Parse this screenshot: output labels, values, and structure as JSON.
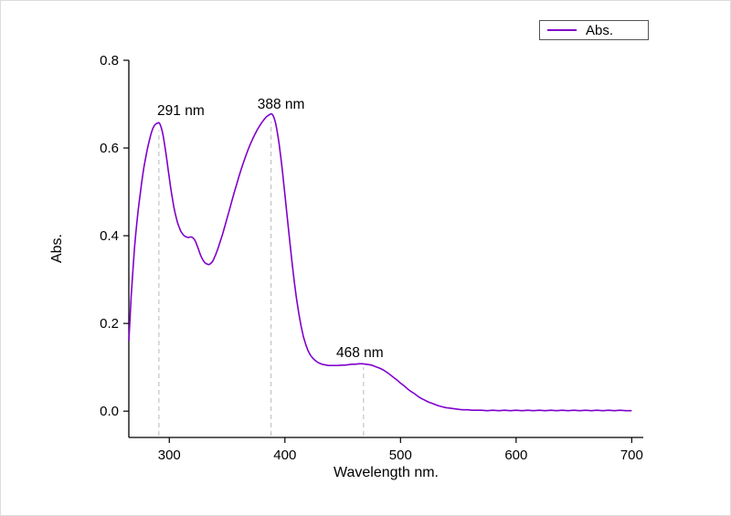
{
  "figure": {
    "background": "#ffffff",
    "border_color": "#dcdcdc"
  },
  "chart_data": {
    "type": "line",
    "title": "",
    "xlabel": "Wavelength nm.",
    "ylabel": "Abs.",
    "legend": {
      "label": "Abs.",
      "position": "top-right"
    },
    "colors": {
      "line": "#8000cc",
      "annotation_line": "#c4c4c4",
      "axis": "#000000",
      "text": "#000000",
      "legend_border": "#545454"
    },
    "xlim": [
      265,
      710
    ],
    "ylim": [
      -0.06,
      0.8
    ],
    "xticks": [
      300,
      400,
      500,
      600,
      700
    ],
    "xtick_labels": [
      "300",
      "400",
      "500",
      "600",
      "700"
    ],
    "yticks": [
      0,
      0.2,
      0.4,
      0.6,
      0.8
    ],
    "ytick_labels": [
      "0.0",
      "0.2",
      "0.4",
      "0.6",
      "0.8"
    ],
    "grid": false,
    "annotations": [
      {
        "text": "291 nm",
        "x": 291,
        "line_top": 0.64,
        "label_y": 0.675,
        "dx": 24
      },
      {
        "text": "388 nm",
        "x": 388,
        "line_top": 0.66,
        "label_y": 0.69,
        "dx": 11
      },
      {
        "text": "468 nm",
        "x": 468,
        "line_top": 0.1,
        "label_y": 0.123,
        "dx": -4
      }
    ],
    "series": [
      {
        "name": "Abs.",
        "points": [
          [
            265,
            0.16
          ],
          [
            266,
            0.21
          ],
          [
            267,
            0.26
          ],
          [
            268,
            0.3
          ],
          [
            269,
            0.34
          ],
          [
            270,
            0.375
          ],
          [
            271,
            0.405
          ],
          [
            272,
            0.432
          ],
          [
            273,
            0.456
          ],
          [
            274,
            0.478
          ],
          [
            275,
            0.499
          ],
          [
            276,
            0.519
          ],
          [
            277,
            0.538
          ],
          [
            278,
            0.555
          ],
          [
            279,
            0.57
          ],
          [
            280,
            0.584
          ],
          [
            281,
            0.597
          ],
          [
            282,
            0.609
          ],
          [
            283,
            0.62
          ],
          [
            284,
            0.63
          ],
          [
            285,
            0.639
          ],
          [
            286,
            0.646
          ],
          [
            287,
            0.651
          ],
          [
            288,
            0.654
          ],
          [
            289,
            0.656
          ],
          [
            290,
            0.657
          ],
          [
            291,
            0.658
          ],
          [
            292,
            0.654
          ],
          [
            293,
            0.647
          ],
          [
            294,
            0.637
          ],
          [
            295,
            0.623
          ],
          [
            296,
            0.607
          ],
          [
            297,
            0.589
          ],
          [
            298,
            0.57
          ],
          [
            299,
            0.551
          ],
          [
            300,
            0.532
          ],
          [
            301,
            0.513
          ],
          [
            302,
            0.496
          ],
          [
            303,
            0.48
          ],
          [
            304,
            0.465
          ],
          [
            305,
            0.452
          ],
          [
            306,
            0.441
          ],
          [
            307,
            0.431
          ],
          [
            308,
            0.423
          ],
          [
            309,
            0.416
          ],
          [
            310,
            0.41
          ],
          [
            311,
            0.406
          ],
          [
            312,
            0.402
          ],
          [
            313,
            0.4
          ],
          [
            314,
            0.398
          ],
          [
            315,
            0.397
          ],
          [
            316,
            0.396
          ],
          [
            317,
            0.396
          ],
          [
            318,
            0.397
          ],
          [
            319,
            0.397
          ],
          [
            320,
            0.396
          ],
          [
            321,
            0.394
          ],
          [
            322,
            0.39
          ],
          [
            323,
            0.385
          ],
          [
            324,
            0.378
          ],
          [
            325,
            0.371
          ],
          [
            326,
            0.363
          ],
          [
            327,
            0.356
          ],
          [
            328,
            0.35
          ],
          [
            329,
            0.345
          ],
          [
            330,
            0.341
          ],
          [
            331,
            0.338
          ],
          [
            332,
            0.336
          ],
          [
            333,
            0.335
          ],
          [
            334,
            0.334
          ],
          [
            335,
            0.335
          ],
          [
            336,
            0.337
          ],
          [
            337,
            0.34
          ],
          [
            338,
            0.344
          ],
          [
            339,
            0.35
          ],
          [
            340,
            0.356
          ],
          [
            342,
            0.37
          ],
          [
            344,
            0.386
          ],
          [
            346,
            0.403
          ],
          [
            348,
            0.421
          ],
          [
            350,
            0.44
          ],
          [
            352,
            0.459
          ],
          [
            354,
            0.478
          ],
          [
            356,
            0.497
          ],
          [
            358,
            0.515
          ],
          [
            360,
            0.533
          ],
          [
            362,
            0.55
          ],
          [
            364,
            0.566
          ],
          [
            366,
            0.581
          ],
          [
            368,
            0.595
          ],
          [
            370,
            0.608
          ],
          [
            372,
            0.62
          ],
          [
            374,
            0.631
          ],
          [
            376,
            0.641
          ],
          [
            378,
            0.65
          ],
          [
            380,
            0.658
          ],
          [
            382,
            0.665
          ],
          [
            384,
            0.671
          ],
          [
            386,
            0.675
          ],
          [
            388,
            0.678
          ],
          [
            389,
            0.677
          ],
          [
            390,
            0.673
          ],
          [
            391,
            0.666
          ],
          [
            392,
            0.656
          ],
          [
            393,
            0.643
          ],
          [
            394,
            0.627
          ],
          [
            395,
            0.609
          ],
          [
            396,
            0.589
          ],
          [
            397,
            0.567
          ],
          [
            398,
            0.543
          ],
          [
            399,
            0.519
          ],
          [
            400,
            0.494
          ],
          [
            402,
            0.443
          ],
          [
            404,
            0.392
          ],
          [
            406,
            0.343
          ],
          [
            408,
            0.298
          ],
          [
            410,
            0.258
          ],
          [
            412,
            0.223
          ],
          [
            414,
            0.194
          ],
          [
            416,
            0.17
          ],
          [
            418,
            0.152
          ],
          [
            420,
            0.138
          ],
          [
            422,
            0.128
          ],
          [
            424,
            0.121
          ],
          [
            426,
            0.116
          ],
          [
            428,
            0.112
          ],
          [
            430,
            0.109
          ],
          [
            432,
            0.107
          ],
          [
            434,
            0.106
          ],
          [
            436,
            0.105
          ],
          [
            438,
            0.104
          ],
          [
            440,
            0.104
          ],
          [
            443,
            0.104
          ],
          [
            446,
            0.104
          ],
          [
            449,
            0.105
          ],
          [
            452,
            0.105
          ],
          [
            455,
            0.106
          ],
          [
            458,
            0.107
          ],
          [
            461,
            0.107
          ],
          [
            464,
            0.108
          ],
          [
            467,
            0.108
          ],
          [
            470,
            0.107
          ],
          [
            473,
            0.106
          ],
          [
            476,
            0.104
          ],
          [
            479,
            0.101
          ],
          [
            482,
            0.098
          ],
          [
            485,
            0.094
          ],
          [
            488,
            0.089
          ],
          [
            491,
            0.083
          ],
          [
            494,
            0.077
          ],
          [
            497,
            0.071
          ],
          [
            500,
            0.064
          ],
          [
            503,
            0.058
          ],
          [
            506,
            0.051
          ],
          [
            509,
            0.045
          ],
          [
            512,
            0.04
          ],
          [
            515,
            0.034
          ],
          [
            518,
            0.029
          ],
          [
            521,
            0.025
          ],
          [
            524,
            0.021
          ],
          [
            527,
            0.018
          ],
          [
            530,
            0.015
          ],
          [
            533,
            0.012
          ],
          [
            536,
            0.01
          ],
          [
            539,
            0.008
          ],
          [
            542,
            0.007
          ],
          [
            545,
            0.006
          ],
          [
            548,
            0.005
          ],
          [
            551,
            0.004
          ],
          [
            554,
            0.003
          ],
          [
            558,
            0.003
          ],
          [
            562,
            0.002
          ],
          [
            566,
            0.002
          ],
          [
            570,
            0.002
          ],
          [
            575,
            0.001
          ],
          [
            580,
            0.002
          ],
          [
            585,
            0.001
          ],
          [
            590,
            0.002
          ],
          [
            595,
            0.001
          ],
          [
            600,
            0.002
          ],
          [
            605,
            0.001
          ],
          [
            610,
            0.002
          ],
          [
            615,
            0.001
          ],
          [
            620,
            0.002
          ],
          [
            625,
            0.001
          ],
          [
            630,
            0.002
          ],
          [
            635,
            0.001
          ],
          [
            640,
            0.002
          ],
          [
            645,
            0.001
          ],
          [
            650,
            0.002
          ],
          [
            655,
            0.001
          ],
          [
            660,
            0.002
          ],
          [
            665,
            0.001
          ],
          [
            670,
            0.002
          ],
          [
            675,
            0.001
          ],
          [
            680,
            0.002
          ],
          [
            685,
            0.001
          ],
          [
            690,
            0.002
          ],
          [
            695,
            0.001
          ],
          [
            700,
            0.001
          ]
        ]
      }
    ]
  }
}
